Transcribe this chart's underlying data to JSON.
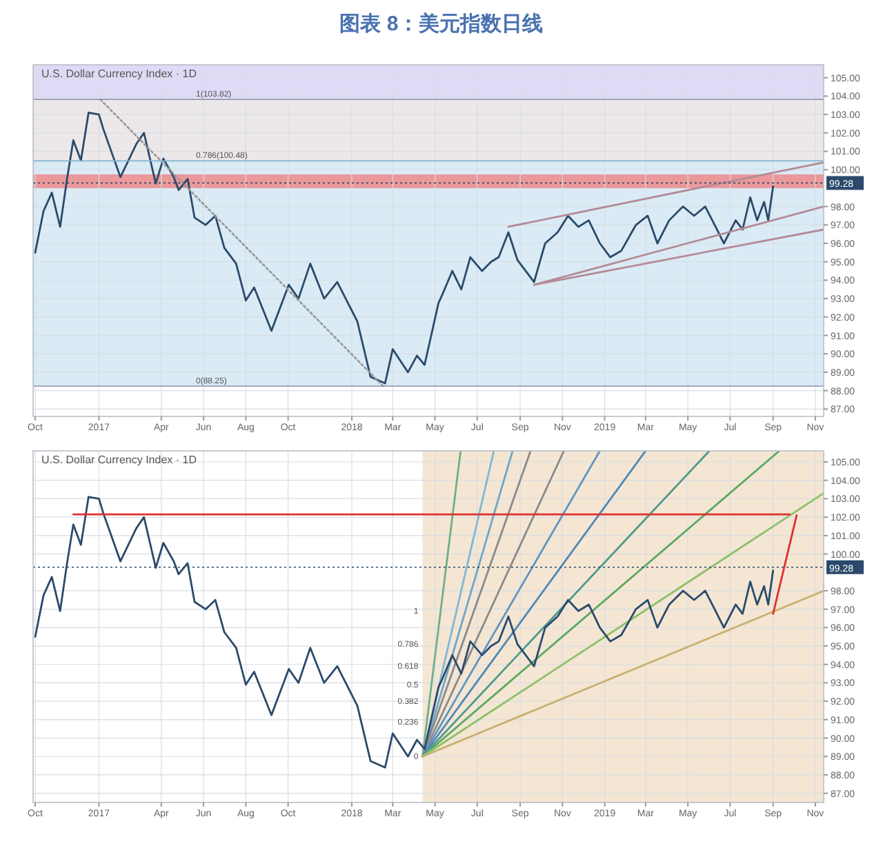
{
  "chart_data": [
    {
      "type": "line",
      "title": "图表 8：美元指数日线",
      "subtitle": "U.S. Dollar Currency Index · 1D",
      "grid": true,
      "xlim": [
        "2016-09-28",
        "2019-11-13"
      ],
      "ylim": [
        86.6,
        105.7
      ],
      "xticks": [
        {
          "value": "2016-10-01",
          "label": "Oct"
        },
        {
          "value": "2017-01-01",
          "label": "2017"
        },
        {
          "value": "2017-04-01",
          "label": "Apr"
        },
        {
          "value": "2017-06-01",
          "label": "Jun"
        },
        {
          "value": "2017-08-01",
          "label": "Aug"
        },
        {
          "value": "2017-10-01",
          "label": "Oct"
        },
        {
          "value": "2018-01-01",
          "label": "2018"
        },
        {
          "value": "2018-03-01",
          "label": "Mar"
        },
        {
          "value": "2018-05-01",
          "label": "May"
        },
        {
          "value": "2018-07-01",
          "label": "Jul"
        },
        {
          "value": "2018-09-01",
          "label": "Sep"
        },
        {
          "value": "2018-11-01",
          "label": "Nov"
        },
        {
          "value": "2019-01-01",
          "label": "2019"
        },
        {
          "value": "2019-03-01",
          "label": "Mar"
        },
        {
          "value": "2019-05-01",
          "label": "May"
        },
        {
          "value": "2019-07-01",
          "label": "Jul"
        },
        {
          "value": "2019-09-01",
          "label": "Sep"
        },
        {
          "value": "2019-11-01",
          "label": "Nov"
        }
      ],
      "yticks": [
        {
          "value": 87,
          "label": "87.00"
        },
        {
          "value": 88,
          "label": "88.00"
        },
        {
          "value": 89,
          "label": "89.00"
        },
        {
          "value": 90,
          "label": "90.00"
        },
        {
          "value": 91,
          "label": "91.00"
        },
        {
          "value": 92,
          "label": "92.00"
        },
        {
          "value": 93,
          "label": "93.00"
        },
        {
          "value": 94,
          "label": "94.00"
        },
        {
          "value": 95,
          "label": "95.00"
        },
        {
          "value": 96,
          "label": "96.00"
        },
        {
          "value": 97,
          "label": "97.00"
        },
        {
          "value": 98,
          "label": "98.00"
        },
        {
          "value": 100,
          "label": "100.00"
        },
        {
          "value": 101,
          "label": "101.00"
        },
        {
          "value": 102,
          "label": "102.00"
        },
        {
          "value": 103,
          "label": "103.00"
        },
        {
          "value": 104,
          "label": "104.00"
        },
        {
          "value": 105,
          "label": "105.00"
        }
      ],
      "bands": [
        {
          "axis": "y",
          "from": 103.82,
          "to": 105.7,
          "color": "#d9d3f4"
        },
        {
          "axis": "y",
          "from": 100.48,
          "to": 103.82,
          "color": "#e9e4e6"
        },
        {
          "axis": "y",
          "from": 88.25,
          "to": 100.48,
          "color": "#d4e8f4"
        },
        {
          "axis": "y",
          "from": 99.0,
          "to": 99.75,
          "color": "#ec8a8a"
        }
      ],
      "ref_lines": [
        {
          "axis": "y",
          "value": 103.82,
          "label": "1(103.82)",
          "color": "#8b8fa8"
        },
        {
          "axis": "y",
          "value": 100.48,
          "label": "0.786(100.48)",
          "color": "#7fb3cf"
        },
        {
          "axis": "y",
          "value": 88.25,
          "label": "0(88.25)",
          "color": "#8b8fa8"
        },
        {
          "axis": "y",
          "value": 99.28,
          "label": "99.28",
          "color": "#2b4a6b",
          "line_style": "dotted"
        }
      ],
      "x": [
        "2016-10-01",
        "2016-10-13",
        "2016-10-25",
        "2016-11-06",
        "2016-11-16",
        "2016-11-25",
        "2016-12-06",
        "2016-12-17",
        "2017-01-01",
        "2017-01-07",
        "2017-02-01",
        "2017-02-24",
        "2017-03-07",
        "2017-03-24",
        "2017-04-04",
        "2017-04-19",
        "2017-04-26",
        "2017-05-09",
        "2017-05-19",
        "2017-06-04",
        "2017-06-18",
        "2017-07-01",
        "2017-07-18",
        "2017-08-01",
        "2017-08-13",
        "2017-09-07",
        "2017-10-02",
        "2017-10-16",
        "2017-11-02",
        "2017-11-22",
        "2017-12-11",
        "2018-01-09",
        "2018-01-28",
        "2018-02-18",
        "2018-03-01",
        "2018-03-23",
        "2018-04-05",
        "2018-04-16",
        "2018-05-06",
        "2018-05-12",
        "2018-05-26",
        "2018-06-08",
        "2018-06-21",
        "2018-07-08",
        "2018-07-21",
        "2018-08-01",
        "2018-08-15",
        "2018-08-28",
        "2018-09-21",
        "2018-10-07",
        "2018-10-25",
        "2018-11-09",
        "2018-11-24",
        "2018-12-09",
        "2018-12-25",
        "2019-01-09",
        "2019-01-25",
        "2019-02-15",
        "2019-03-04",
        "2019-03-18",
        "2019-04-04",
        "2019-04-24",
        "2019-05-10",
        "2019-05-26",
        "2019-06-10",
        "2019-06-22",
        "2019-07-09",
        "2019-07-19",
        "2019-07-30",
        "2019-08-09",
        "2019-08-19",
        "2019-08-25",
        "2019-09-01"
      ],
      "series": [
        {
          "color": "#2b4a6b",
          "values": [
            95.5,
            97.75,
            98.75,
            96.9,
            99.5,
            101.6,
            100.5,
            103.1,
            103.0,
            102.25,
            99.6,
            101.4,
            102.0,
            99.25,
            100.6,
            99.6,
            98.9,
            99.5,
            97.4,
            97.0,
            97.5,
            95.75,
            94.9,
            92.9,
            93.6,
            91.25,
            93.75,
            93.0,
            94.9,
            93.0,
            93.9,
            91.75,
            88.75,
            88.4,
            90.25,
            89.0,
            89.9,
            89.4,
            92.75,
            93.25,
            94.5,
            93.5,
            95.25,
            94.5,
            95.0,
            95.25,
            96.6,
            95.1,
            93.9,
            96.0,
            96.6,
            97.5,
            96.9,
            97.25,
            96.0,
            95.25,
            95.6,
            97.0,
            97.5,
            96.0,
            97.25,
            98.0,
            97.5,
            98.0,
            96.9,
            96.0,
            97.25,
            96.75,
            98.5,
            97.25,
            98.25,
            97.25,
            99.1
          ]
        },
        {
          "color": "#9a9a9a",
          "line_style": "dotted",
          "x": [
            "2017-01-03",
            "2018-02-15"
          ],
          "values": [
            103.82,
            88.25
          ]
        },
        {
          "color": "#b48a95",
          "x": [
            "2018-08-15",
            "2019-11-13"
          ],
          "values": [
            96.9,
            100.4
          ]
        },
        {
          "color": "#b48a95",
          "x": [
            "2018-09-21",
            "2019-11-13"
          ],
          "values": [
            93.75,
            98.0
          ]
        },
        {
          "color": "#b48a95",
          "x": [
            "2018-09-21",
            "2019-11-13"
          ],
          "values": [
            93.75,
            96.75
          ]
        }
      ]
    },
    {
      "type": "line",
      "subtitle": "U.S. Dollar Currency Index · 1D",
      "grid": true,
      "xlim": [
        "2016-09-28",
        "2019-11-13"
      ],
      "ylim": [
        86.5,
        105.6
      ],
      "xticks": [
        {
          "value": "2016-10-01",
          "label": "Oct"
        },
        {
          "value": "2017-01-01",
          "label": "2017"
        },
        {
          "value": "2017-04-01",
          "label": "Apr"
        },
        {
          "value": "2017-06-01",
          "label": "Jun"
        },
        {
          "value": "2017-08-01",
          "label": "Aug"
        },
        {
          "value": "2017-10-01",
          "label": "Oct"
        },
        {
          "value": "2018-01-01",
          "label": "2018"
        },
        {
          "value": "2018-03-01",
          "label": "Mar"
        },
        {
          "value": "2018-05-01",
          "label": "May"
        },
        {
          "value": "2018-07-01",
          "label": "Jul"
        },
        {
          "value": "2018-09-01",
          "label": "Sep"
        },
        {
          "value": "2018-11-01",
          "label": "Nov"
        },
        {
          "value": "2019-01-01",
          "label": "2019"
        },
        {
          "value": "2019-03-01",
          "label": "Mar"
        },
        {
          "value": "2019-05-01",
          "label": "May"
        },
        {
          "value": "2019-07-01",
          "label": "Jul"
        },
        {
          "value": "2019-09-01",
          "label": "Sep"
        },
        {
          "value": "2019-11-01",
          "label": "Nov"
        }
      ],
      "yticks": [
        {
          "value": 87,
          "label": "87.00"
        },
        {
          "value": 88,
          "label": "88.00"
        },
        {
          "value": 89,
          "label": "89.00"
        },
        {
          "value": 90,
          "label": "90.00"
        },
        {
          "value": 91,
          "label": "91.00"
        },
        {
          "value": 92,
          "label": "92.00"
        },
        {
          "value": 93,
          "label": "93.00"
        },
        {
          "value": 94,
          "label": "94.00"
        },
        {
          "value": 95,
          "label": "95.00"
        },
        {
          "value": 96,
          "label": "96.00"
        },
        {
          "value": 97,
          "label": "97.00"
        },
        {
          "value": 98,
          "label": "98.00"
        },
        {
          "value": 100,
          "label": "100.00"
        },
        {
          "value": 101,
          "label": "101.00"
        },
        {
          "value": 102,
          "label": "102.00"
        },
        {
          "value": 103,
          "label": "103.00"
        },
        {
          "value": 104,
          "label": "104.00"
        },
        {
          "value": 105,
          "label": "105.00"
        }
      ],
      "bands": [
        {
          "axis": "x",
          "from": "2018-04-13",
          "to": "2019-11-13",
          "color": "#f2e2cb"
        }
      ],
      "ref_lines": [
        {
          "axis": "y",
          "value": 99.28,
          "label": "99.28",
          "color": "#2b4a6b",
          "line_style": "dotted"
        }
      ],
      "annotations": [
        {
          "text": "1",
          "x": "2018-04-13",
          "y": 96.9
        },
        {
          "text": "0.786",
          "x": "2018-04-13",
          "y": 95.1
        },
        {
          "text": "0.618",
          "x": "2018-04-13",
          "y": 93.9
        },
        {
          "text": "0.5",
          "x": "2018-04-13",
          "y": 92.9
        },
        {
          "text": "0.382",
          "x": "2018-04-13",
          "y": 92.0
        },
        {
          "text": "0.236",
          "x": "2018-04-13",
          "y": 90.9
        },
        {
          "text": "0",
          "x": "2018-04-13",
          "y": 89.0
        }
      ],
      "x": [
        "2016-10-01",
        "2016-10-13",
        "2016-10-25",
        "2016-11-06",
        "2016-11-16",
        "2016-11-25",
        "2016-12-06",
        "2016-12-17",
        "2017-01-01",
        "2017-01-07",
        "2017-02-01",
        "2017-02-24",
        "2017-03-07",
        "2017-03-24",
        "2017-04-04",
        "2017-04-19",
        "2017-04-26",
        "2017-05-09",
        "2017-05-19",
        "2017-06-04",
        "2017-06-18",
        "2017-07-01",
        "2017-07-18",
        "2017-08-01",
        "2017-08-13",
        "2017-09-07",
        "2017-10-02",
        "2017-10-16",
        "2017-11-02",
        "2017-11-22",
        "2017-12-11",
        "2018-01-09",
        "2018-01-28",
        "2018-02-18",
        "2018-03-01",
        "2018-03-23",
        "2018-04-05",
        "2018-04-16",
        "2018-05-06",
        "2018-05-12",
        "2018-05-26",
        "2018-06-08",
        "2018-06-21",
        "2018-07-08",
        "2018-07-21",
        "2018-08-01",
        "2018-08-15",
        "2018-08-28",
        "2018-09-21",
        "2018-10-07",
        "2018-10-25",
        "2018-11-09",
        "2018-11-24",
        "2018-12-09",
        "2018-12-25",
        "2019-01-09",
        "2019-01-25",
        "2019-02-15",
        "2019-03-04",
        "2019-03-18",
        "2019-04-04",
        "2019-04-24",
        "2019-05-10",
        "2019-05-26",
        "2019-06-10",
        "2019-06-22",
        "2019-07-09",
        "2019-07-19",
        "2019-07-30",
        "2019-08-09",
        "2019-08-19",
        "2019-08-25",
        "2019-09-01"
      ],
      "series": [
        {
          "color": "#6fae8a",
          "x": [
            "2018-04-13",
            "2018-06-07"
          ],
          "values": [
            89.0,
            105.6
          ]
        },
        {
          "color": "#7fb8d6",
          "x": [
            "2018-04-13",
            "2018-07-25"
          ],
          "values": [
            89.0,
            105.6
          ]
        },
        {
          "color": "#6fa5c8",
          "x": [
            "2018-04-13",
            "2018-08-21"
          ],
          "values": [
            89.0,
            105.6
          ]
        },
        {
          "color": "#8a8a8a",
          "x": [
            "2018-04-13",
            "2018-09-16"
          ],
          "values": [
            89.0,
            105.6
          ]
        },
        {
          "color": "#8a8a8a",
          "x": [
            "2018-04-13",
            "2018-11-03"
          ],
          "values": [
            89.0,
            105.6
          ]
        },
        {
          "color": "#5f95c0",
          "x": [
            "2018-04-13",
            "2018-12-25"
          ],
          "values": [
            89.0,
            105.6
          ]
        },
        {
          "color": "#4f86b5",
          "x": [
            "2018-04-13",
            "2019-03-01"
          ],
          "values": [
            89.0,
            105.6
          ]
        },
        {
          "color": "#4f9a8a",
          "x": [
            "2018-04-13",
            "2019-06-01"
          ],
          "values": [
            89.0,
            105.6
          ]
        },
        {
          "color": "#5aa860",
          "x": [
            "2018-04-13",
            "2019-09-10"
          ],
          "values": [
            89.0,
            105.6
          ]
        },
        {
          "color": "#8cc06a",
          "x": [
            "2018-04-13",
            "2019-11-13"
          ],
          "values": [
            89.0,
            103.3
          ]
        },
        {
          "color": "#c8b070",
          "x": [
            "2018-04-13",
            "2019-11-13"
          ],
          "values": [
            89.0,
            98.0
          ]
        },
        {
          "color": "#2b4a6b",
          "values": [
            95.5,
            97.75,
            98.75,
            96.9,
            99.5,
            101.6,
            100.5,
            103.1,
            103.0,
            102.25,
            99.6,
            101.4,
            102.0,
            99.25,
            100.6,
            99.6,
            98.9,
            99.5,
            97.4,
            97.0,
            97.5,
            95.75,
            94.9,
            92.9,
            93.6,
            91.25,
            93.75,
            93.0,
            94.9,
            93.0,
            93.9,
            91.75,
            88.75,
            88.4,
            90.25,
            89.0,
            89.9,
            89.4,
            92.75,
            93.25,
            94.5,
            93.5,
            95.25,
            94.5,
            95.0,
            95.25,
            96.6,
            95.1,
            93.9,
            96.0,
            96.6,
            97.5,
            96.9,
            97.25,
            96.0,
            95.25,
            95.6,
            97.0,
            97.5,
            96.0,
            97.25,
            98.0,
            97.5,
            98.0,
            96.9,
            96.0,
            97.25,
            96.75,
            98.5,
            97.25,
            98.25,
            97.25,
            99.1
          ]
        },
        {
          "color": "#e0302a",
          "x": [
            "2016-11-25",
            "2019-09-25"
          ],
          "values": [
            102.15,
            102.15
          ]
        },
        {
          "color": "#e0302a",
          "x": [
            "2019-09-01",
            "2019-10-05"
          ],
          "values": [
            96.75,
            102.1
          ]
        }
      ]
    }
  ]
}
